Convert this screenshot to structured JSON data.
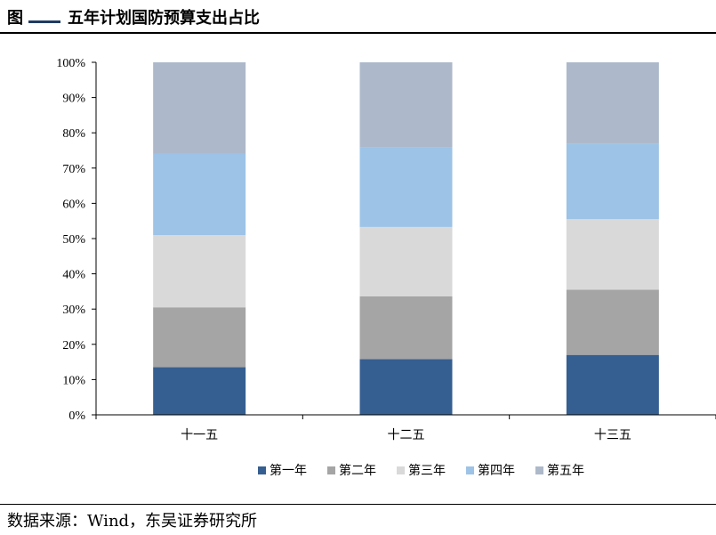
{
  "header": {
    "figure_label": "图",
    "title": "五年计划国防预算支出占比"
  },
  "footer": {
    "source": "数据来源：Wind，东吴证券研究所"
  },
  "colors": {
    "series": [
      "#365f91",
      "#a5a5a5",
      "#d9d9d9",
      "#9dc3e6",
      "#adb9ca"
    ],
    "axis": "#000000",
    "rule": "#000000"
  },
  "chart_data": {
    "type": "bar",
    "stacked": true,
    "title": "",
    "xlabel": "",
    "ylabel": "",
    "ylim": [
      0,
      100
    ],
    "y_ticks": [
      "0%",
      "10%",
      "20%",
      "30%",
      "40%",
      "50%",
      "60%",
      "70%",
      "80%",
      "90%",
      "100%"
    ],
    "categories": [
      "十一五",
      "十二五",
      "十三五"
    ],
    "series": [
      {
        "name": "第一年",
        "values": [
          13.5,
          15.8,
          17.0
        ]
      },
      {
        "name": "第二年",
        "values": [
          17.0,
          17.8,
          18.5
        ]
      },
      {
        "name": "第三年",
        "values": [
          20.5,
          19.7,
          20.0
        ]
      },
      {
        "name": "第四年",
        "values": [
          23.0,
          22.5,
          21.5
        ]
      },
      {
        "name": "第五年",
        "values": [
          26.0,
          24.2,
          23.0
        ]
      }
    ],
    "legend_position": "bottom",
    "grid": false
  }
}
